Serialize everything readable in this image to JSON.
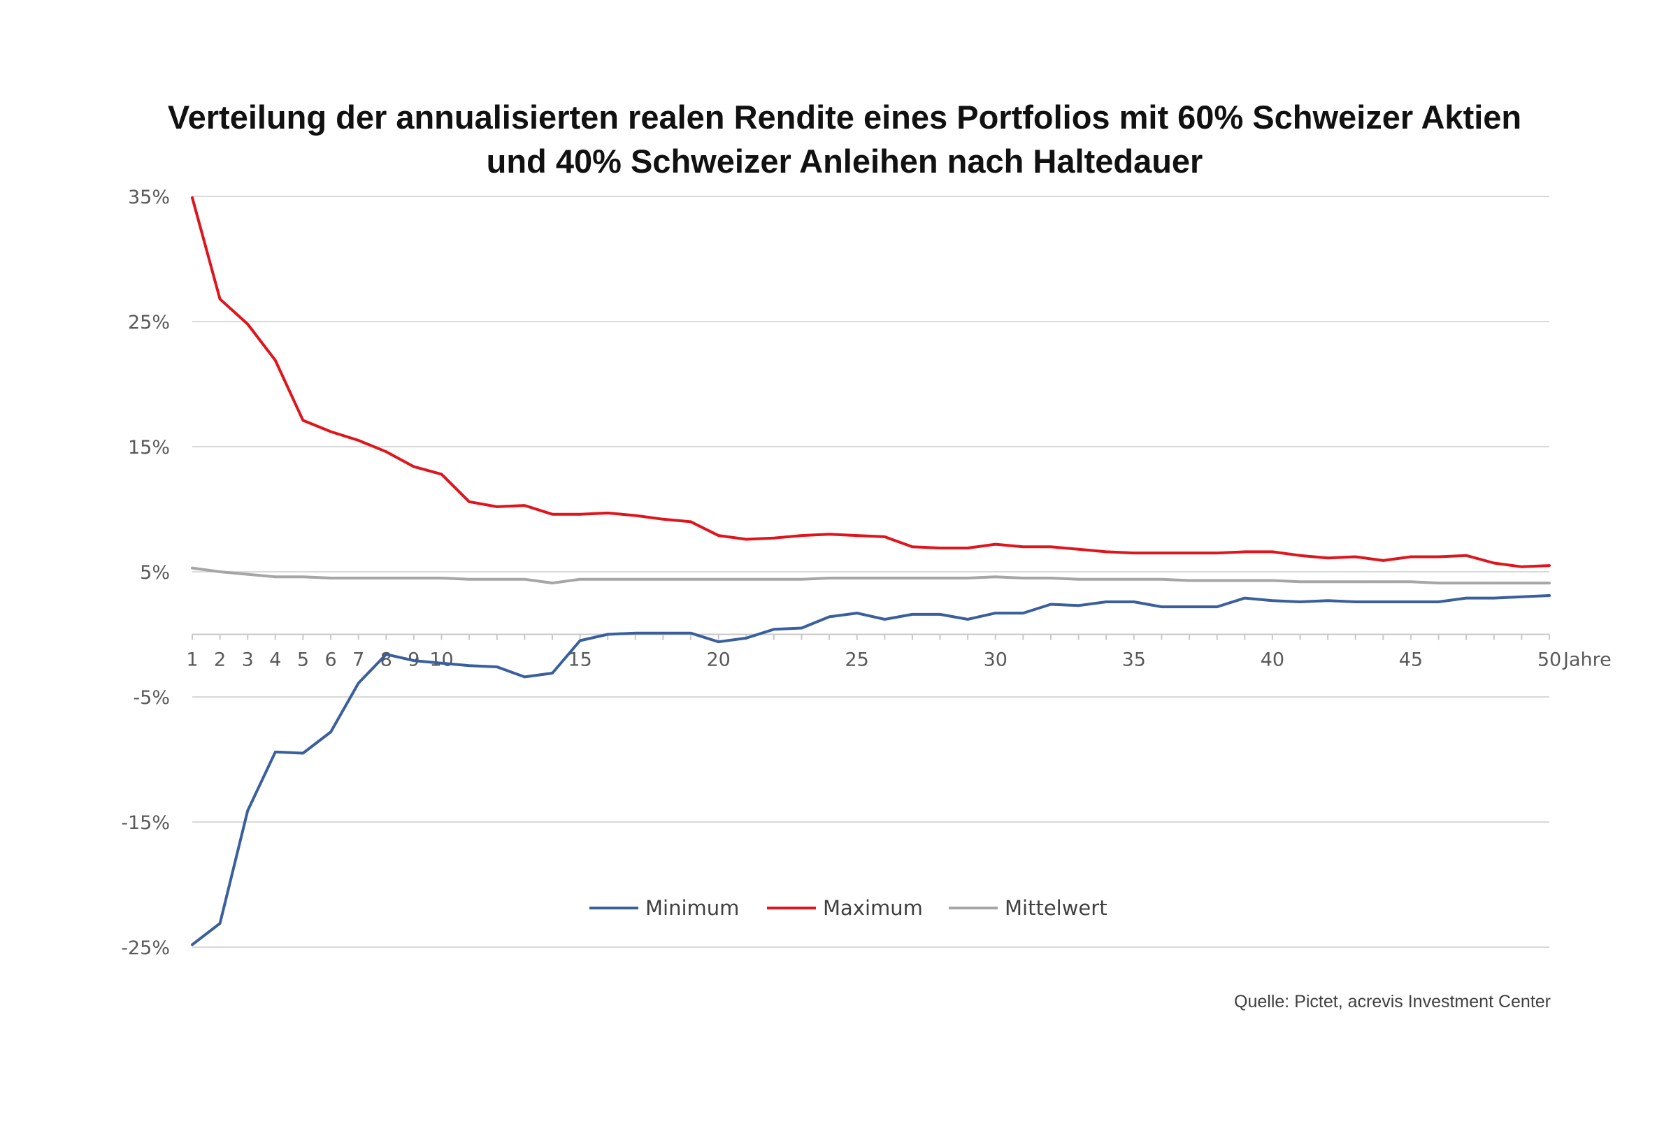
{
  "chart_data": {
    "type": "line",
    "title_lines": [
      "Verteilung der annualisierten realen Rendite eines Portfolios mit 60% Schweizer Aktien",
      "und 40% Schweizer Anleihen nach Haltedauer"
    ],
    "xlabel": "Jahre",
    "ylabel": "",
    "x": [
      1,
      2,
      3,
      4,
      5,
      6,
      7,
      8,
      9,
      10,
      11,
      12,
      13,
      14,
      15,
      16,
      17,
      18,
      19,
      20,
      21,
      22,
      23,
      24,
      25,
      26,
      27,
      28,
      29,
      30,
      31,
      32,
      33,
      34,
      35,
      36,
      37,
      38,
      39,
      40,
      41,
      42,
      43,
      44,
      45,
      46,
      47,
      48,
      49,
      50
    ],
    "x_tick_labels": [
      "1",
      "2",
      "3",
      "4",
      "5",
      "6",
      "7",
      "8",
      "9",
      "10",
      "15",
      "20",
      "25",
      "30",
      "35",
      "40",
      "45",
      "50"
    ],
    "x_tick_values": [
      1,
      2,
      3,
      4,
      5,
      6,
      7,
      8,
      9,
      10,
      15,
      20,
      25,
      30,
      35,
      40,
      45,
      50
    ],
    "ylim": [
      -25,
      35
    ],
    "y_ticks": [
      35,
      25,
      15,
      5,
      -5,
      -15,
      -25
    ],
    "y_tick_labels": [
      "35%",
      "25%",
      "15%",
      "5%",
      "-5%",
      "-15%",
      "-25%"
    ],
    "grid": true,
    "legend_position": "bottom-center",
    "series": [
      {
        "name": "Minimum",
        "color": "#3a5f9e",
        "values": [
          -24.8,
          -23.1,
          -14.1,
          -9.4,
          -9.5,
          -7.8,
          -3.9,
          -1.6,
          -2.1,
          -2.3,
          -2.5,
          -2.6,
          -3.4,
          -3.1,
          -0.5,
          0.0,
          0.1,
          0.1,
          0.1,
          -0.6,
          -0.3,
          0.4,
          0.5,
          1.4,
          1.7,
          1.2,
          1.6,
          1.6,
          1.2,
          1.7,
          1.7,
          2.4,
          2.3,
          2.6,
          2.6,
          2.2,
          2.2,
          2.2,
          2.9,
          2.7,
          2.6,
          2.7,
          2.6,
          2.6,
          2.6,
          2.6,
          2.9,
          2.9,
          3.0,
          3.1
        ]
      },
      {
        "name": "Maximum",
        "color": "#e0141b",
        "values": [
          34.9,
          26.8,
          24.8,
          21.9,
          17.1,
          16.2,
          15.5,
          14.6,
          13.4,
          12.8,
          10.6,
          10.2,
          10.3,
          9.6,
          9.6,
          9.7,
          9.5,
          9.2,
          9.0,
          7.9,
          7.6,
          7.7,
          7.9,
          8.0,
          7.9,
          7.8,
          7.0,
          6.9,
          6.9,
          7.2,
          7.0,
          7.0,
          6.8,
          6.6,
          6.5,
          6.5,
          6.5,
          6.5,
          6.6,
          6.6,
          6.3,
          6.1,
          6.2,
          5.9,
          6.2,
          6.2,
          6.3,
          5.7,
          5.4,
          5.5
        ]
      },
      {
        "name": "Mittelwert",
        "color": "#a6a6a6",
        "values": [
          5.3,
          5.0,
          4.8,
          4.6,
          4.6,
          4.5,
          4.5,
          4.5,
          4.5,
          4.5,
          4.4,
          4.4,
          4.4,
          4.1,
          4.4,
          4.4,
          4.4,
          4.4,
          4.4,
          4.4,
          4.4,
          4.4,
          4.4,
          4.5,
          4.5,
          4.5,
          4.5,
          4.5,
          4.5,
          4.6,
          4.5,
          4.5,
          4.4,
          4.4,
          4.4,
          4.4,
          4.3,
          4.3,
          4.3,
          4.3,
          4.2,
          4.2,
          4.2,
          4.2,
          4.2,
          4.1,
          4.1,
          4.1,
          4.1,
          4.1
        ]
      }
    ],
    "source": "Quelle: Pictet, acrevis Investment Center"
  }
}
